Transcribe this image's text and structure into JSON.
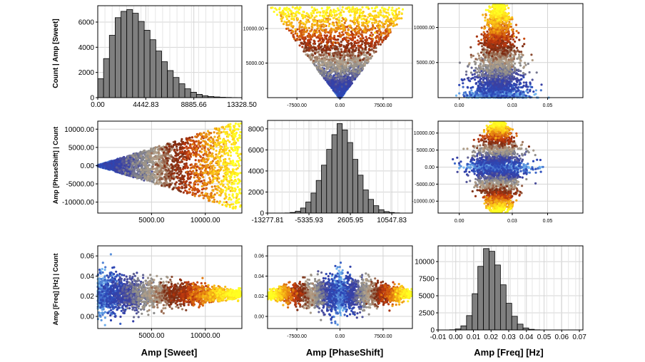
{
  "colors": {
    "hist_fill": "#7f7f7f",
    "hist_stroke": "#000000",
    "grid": "#d4d4d4",
    "frame": "#000000",
    "scatter_ramp": [
      "#74b8f0",
      "#2a48b8",
      "#3b3fa0",
      "#8a8a8a",
      "#b5a28a",
      "#7a2a10",
      "#c0390f",
      "#e88a10",
      "#ffd21a",
      "#ffff22"
    ]
  },
  "axis_titles": {
    "x": [
      "Amp [Sweet]",
      "Amp [PhaseShift]",
      "Amp [Freq] [Hz]"
    ],
    "y": [
      "Count | Amp [Sweet]",
      "Amp [PhaseShift] | Count",
      "Amp [Freq] [Hz] | Count"
    ]
  },
  "chart_data": [
    {
      "type": "bar",
      "name": "hist-sweet",
      "xlabel": "Amp [Sweet]",
      "ylabel": "Count",
      "xlim": [
        0,
        13328.5
      ],
      "ylim": [
        0,
        7300
      ],
      "xticks": [
        0,
        4442.83,
        8885.66,
        13328.5
      ],
      "xtick_labels": [
        "0.00",
        "4442.83",
        "8885.66",
        "13328.50"
      ],
      "yticks": [
        0,
        2000,
        4000,
        6000
      ],
      "ytick_labels": [
        "0",
        "2000",
        "4000",
        "6000"
      ],
      "bin_start": 0,
      "bin_width": 537,
      "values": [
        1500,
        3100,
        4950,
        6350,
        6850,
        7000,
        6700,
        6050,
        5350,
        4600,
        3700,
        2850,
        2150,
        1600,
        1100,
        700,
        430,
        260,
        150,
        90,
        55,
        30,
        18,
        8
      ]
    },
    {
      "type": "scatter",
      "name": "scatter-phaseshift-vs-sweet",
      "xlim": [
        -12600,
        12600
      ],
      "ylim": [
        0,
        13400
      ],
      "xticks": [
        -7500,
        0,
        7500
      ],
      "xtick_labels": [
        "-7500.00",
        "0.00",
        "7500.00"
      ],
      "yticks": [
        5000,
        10000
      ],
      "ytick_labels": [
        "5000.00",
        "10000.00"
      ],
      "shape": "v-wedge",
      "y_max": 13100
    },
    {
      "type": "scatter",
      "name": "scatter-freq-vs-sweet",
      "xlim": [
        -0.012,
        0.07
      ],
      "ylim": [
        0,
        13400
      ],
      "xticks": [
        0,
        0.03,
        0.05
      ],
      "xtick_labels": [
        "0.00",
        "0.03",
        "0.05"
      ],
      "yticks": [
        5000,
        10000
      ],
      "ytick_labels": [
        "5000.00",
        "10000.00"
      ],
      "shape": "peak",
      "center": 0.022,
      "y_max": 13300
    },
    {
      "type": "scatter",
      "name": "scatter-sweet-vs-phaseshift",
      "xlim": [
        0,
        13400
      ],
      "ylim": [
        -13000,
        12200
      ],
      "xticks": [
        5000,
        10000
      ],
      "xtick_labels": [
        "5000.00",
        "10000.00"
      ],
      "yticks": [
        -10000,
        -5000,
        0,
        5000,
        10000
      ],
      "ytick_labels": [
        "-10000.00",
        "-5000.00",
        "0.00",
        "5000.00",
        "10000.00"
      ],
      "shape": "cone-right",
      "x_max": 13300
    },
    {
      "type": "bar",
      "name": "hist-phaseshift",
      "xlabel": "Amp [PhaseShift]",
      "ylabel": "Count",
      "xlim": [
        -13277.81,
        14500
      ],
      "ylim": [
        0,
        8800
      ],
      "xticks": [
        -13277.81,
        -5335.93,
        2605.95,
        10547.83
      ],
      "xtick_labels": [
        "-13277.81",
        "-5335.93",
        "2605.95",
        "10547.83"
      ],
      "yticks": [
        0,
        2000,
        4000,
        6000,
        8000
      ],
      "ytick_labels": [
        "0",
        "2000",
        "4000",
        "6000",
        "8000"
      ],
      "bin_start": -9950,
      "bin_width": 1000,
      "values": [
        15,
        60,
        180,
        480,
        1050,
        1900,
        3100,
        4550,
        6050,
        7450,
        8500,
        7900,
        6700,
        5100,
        3600,
        2200,
        1300,
        700,
        320,
        140,
        55,
        20
      ]
    },
    {
      "type": "scatter",
      "name": "scatter-freq-vs-phaseshift",
      "xlim": [
        -0.012,
        0.07
      ],
      "ylim": [
        -13500,
        13500
      ],
      "xticks": [
        0,
        0.03,
        0.05
      ],
      "xtick_labels": [
        "0.00",
        "0.03",
        "0.05"
      ],
      "yticks": [
        -10000,
        -5000,
        0,
        5000,
        10000
      ],
      "ytick_labels": [
        "-10000.00",
        "-5000.00",
        "0.00",
        "5000.00",
        "10000.00"
      ],
      "shape": "diamond",
      "center": 0.022,
      "y_max": 13300
    },
    {
      "type": "scatter",
      "name": "scatter-sweet-vs-freq",
      "xlim": [
        0,
        13400
      ],
      "ylim": [
        -0.012,
        0.07
      ],
      "xticks": [
        5000,
        10000
      ],
      "xtick_labels": [
        "5000.00",
        "10000.00"
      ],
      "yticks": [
        0,
        0.02,
        0.04,
        0.06
      ],
      "ytick_labels": [
        "0.00",
        "0.02",
        "0.04",
        "0.06"
      ],
      "shape": "narrowing-right",
      "center": 0.022,
      "x_max": 13300
    },
    {
      "type": "scatter",
      "name": "scatter-phaseshift-vs-freq",
      "xlim": [
        -12600,
        12600
      ],
      "ylim": [
        -0.012,
        0.07
      ],
      "xticks": [
        -7500,
        0,
        7500
      ],
      "xtick_labels": [
        "-7500.00",
        "0.00",
        "7500.00"
      ],
      "yticks": [
        0,
        0.02,
        0.04,
        0.06
      ],
      "ytick_labels": [
        "0.00",
        "0.02",
        "0.04",
        "0.06"
      ],
      "shape": "diamond-h",
      "center": 0.022,
      "x_max": 12500
    },
    {
      "type": "bar",
      "name": "hist-freq",
      "xlabel": "Amp [Freq] [Hz]",
      "ylabel": "Count",
      "xlim": [
        -0.01,
        0.072
      ],
      "ylim": [
        0,
        12300
      ],
      "xticks": [
        -0.01,
        0,
        0.01,
        0.02,
        0.03,
        0.04,
        0.05,
        0.06,
        0.07
      ],
      "xtick_labels": [
        "-0.01",
        "0.00",
        "0.01",
        "0.02",
        "0.03",
        "0.04",
        "0.05",
        "0.06",
        "0.07"
      ],
      "yticks": [
        0,
        2500,
        5000,
        7500,
        10000
      ],
      "ytick_labels": [
        "0",
        "2500",
        "5000",
        "7500",
        "10000"
      ],
      "bin_start": -0.0035,
      "bin_width": 0.0032,
      "values": [
        30,
        140,
        600,
        2100,
        5300,
        9300,
        11900,
        11500,
        9500,
        6600,
        3900,
        2000,
        850,
        290,
        90,
        25
      ]
    }
  ]
}
